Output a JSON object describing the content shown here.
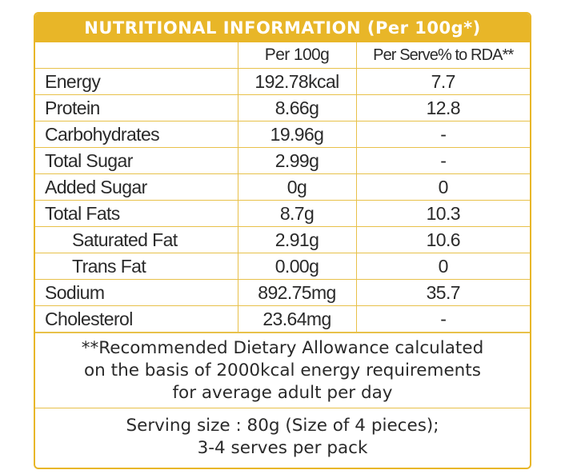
{
  "title": "NUTRITIONAL INFORMATION (Per 100g*)",
  "header": {
    "col1": "",
    "col2": "Per 100g",
    "col3": "Per Serve% to RDA**"
  },
  "rows": [
    {
      "name": "Energy",
      "per100": "192.78kcal",
      "rda": "7.7"
    },
    {
      "name": "Protein",
      "per100": "8.66g",
      "rda": "12.8"
    },
    {
      "name": "Carbohydrates",
      "per100": "19.96g",
      "rda": "-"
    },
    {
      "name": "Total Sugar",
      "per100": "2.99g",
      "rda": "-"
    },
    {
      "name": "Added Sugar",
      "per100": "0g",
      "rda": "0"
    },
    {
      "name": "Total Fats",
      "per100": "8.7g",
      "rda": "10.3"
    },
    {
      "name": "Saturated Fat",
      "per100": "2.91g",
      "rda": "10.6"
    },
    {
      "name": "Trans Fat",
      "per100": "0.00g",
      "rda": "0"
    },
    {
      "name": "Sodium",
      "per100": "892.75mg",
      "rda": "35.7"
    },
    {
      "name": "Cholesterol",
      "per100": "23.64mg",
      "rda": "-"
    }
  ],
  "note": {
    "line1": "**Recommended Dietary Allowance calculated",
    "line2": "on the basis of 2000kcal energy requirements",
    "line3": "for average adult per day"
  },
  "serving": {
    "line1": "Serving size : 80g (Size of 4 pieces);",
    "line2": "3-4 serves per pack"
  },
  "colors": {
    "accent": "#e8b628",
    "border": "#e8c14a",
    "text": "#2a2a2a"
  }
}
